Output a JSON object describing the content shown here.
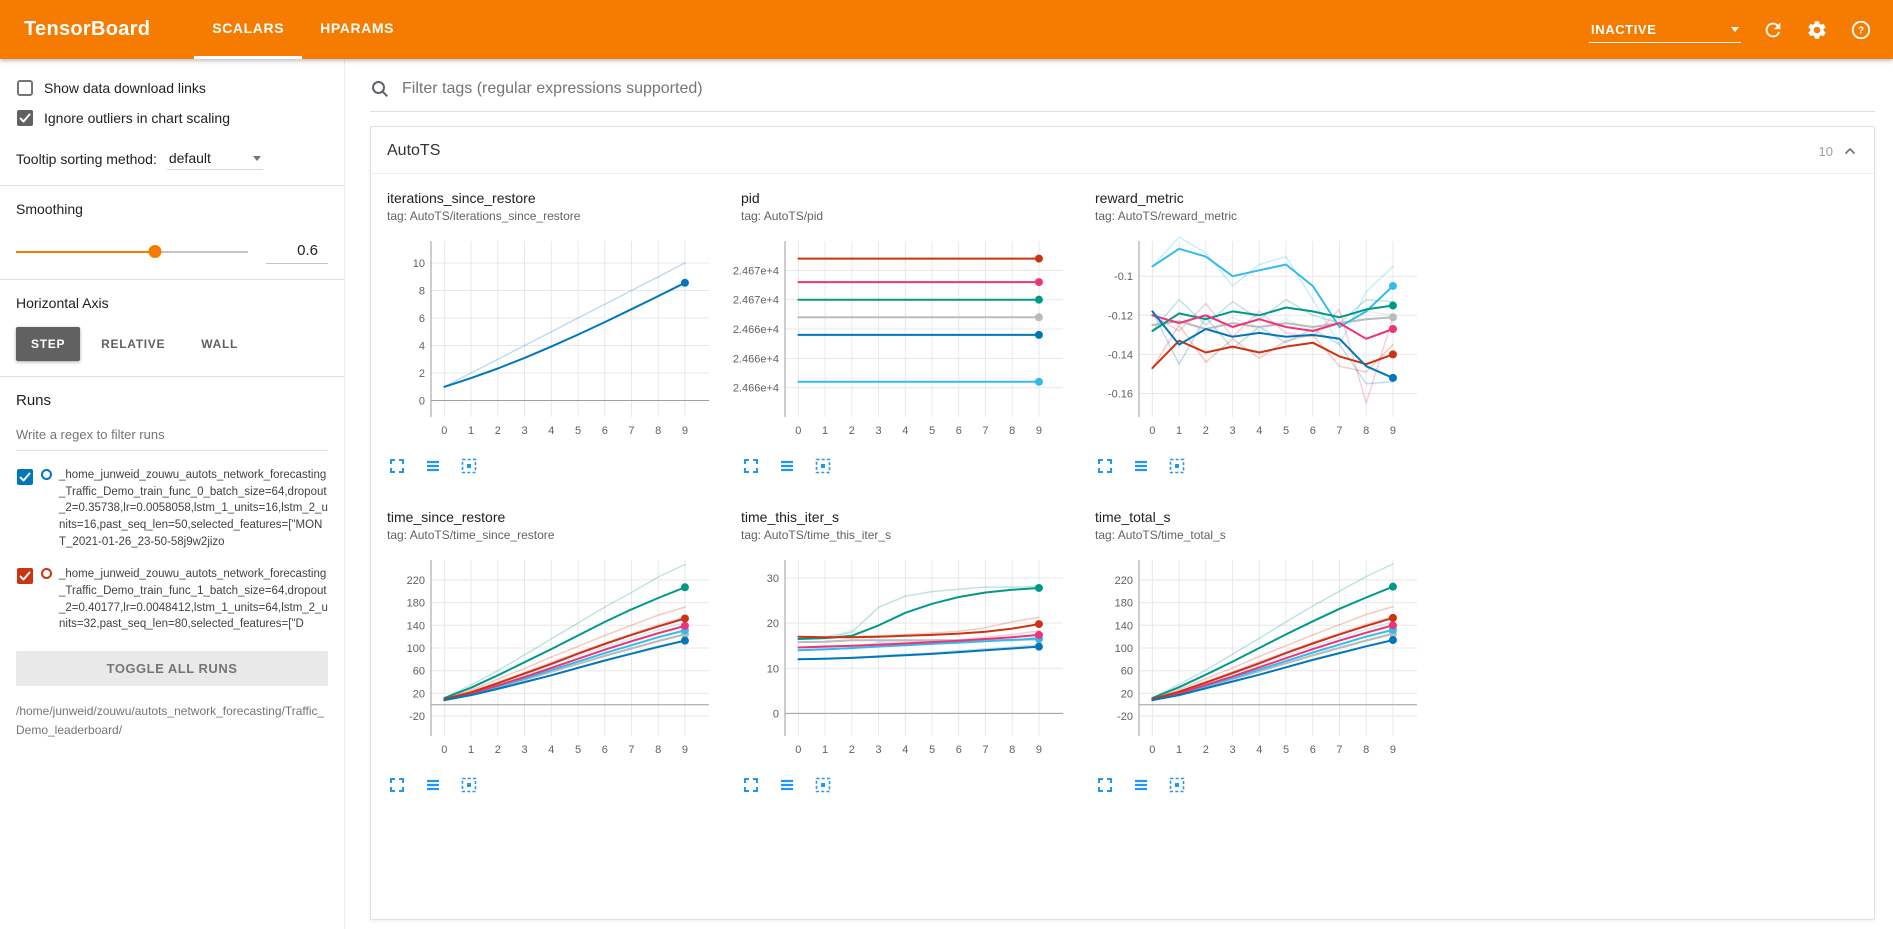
{
  "colors": {
    "accent_orange": "#f57c00",
    "toolbar_icon_blue": "#2196f3",
    "settings_checkbox_gray": "#616161",
    "run_palette": [
      "#0077bb",
      "#33bbee",
      "#009988",
      "#cc3311",
      "#ee3377",
      "#bbbbbb"
    ]
  },
  "header": {
    "brand": "TensorBoard",
    "tabs": [
      {
        "label": "SCALARS",
        "active": true
      },
      {
        "label": "HPARAMS",
        "active": false
      }
    ],
    "status_select": "INACTIVE"
  },
  "sidebar": {
    "checkboxes": [
      {
        "label": "Show data download links",
        "checked": false
      },
      {
        "label": "Ignore outliers in chart scaling",
        "checked": true
      }
    ],
    "tooltip_sort": {
      "label": "Tooltip sorting method:",
      "value": "default"
    },
    "smoothing": {
      "label": "Smoothing",
      "value": "0.6",
      "percent": 60
    },
    "horizontal_axis": {
      "label": "Horizontal Axis",
      "options": [
        "STEP",
        "RELATIVE",
        "WALL"
      ],
      "selected": "STEP"
    },
    "runs": {
      "label": "Runs",
      "filter_placeholder": "Write a regex to filter runs",
      "items": [
        {
          "name": "_home_junweid_zouwu_autots_network_forecasting_Traffic_Demo_train_func_0_batch_size=64,dropout_2=0.35738,lr=0.0058058,lstm_1_units=16,lstm_2_units=16,past_seq_len=50,selected_features=[\"MONT_2021-01-26_23-50-58j9w2jizo",
          "color": "#0077bb",
          "checked": true
        },
        {
          "name": "_home_junweid_zouwu_autots_network_forecasting_Traffic_Demo_train_func_1_batch_size=64,dropout_2=0.40177,lr=0.0048412,lstm_1_units=64,lstm_2_units=32,past_seq_len=80,selected_features=[\"D",
          "color": "#cc3311",
          "checked": true
        }
      ],
      "toggle_all_label": "TOGGLE ALL RUNS",
      "footer_path": "/home/junweid/zouwu/autots_network_forecasting/Traffic_Demo_leaderboard/"
    }
  },
  "main": {
    "filter_placeholder": "Filter tags (regular expressions supported)",
    "card": {
      "title": "AutoTS",
      "count": "10"
    }
  },
  "chart_data": [
    {
      "type": "line",
      "title": "iterations_since_restore",
      "tag": "tag: AutoTS/iterations_since_restore",
      "x": [
        0,
        1,
        2,
        3,
        4,
        5,
        6,
        7,
        8,
        9
      ],
      "xlim": [
        -0.5,
        9.9
      ],
      "ylim": [
        -1.2,
        11.6
      ],
      "yticks": [
        0,
        2,
        4,
        6,
        8,
        10
      ],
      "grid": true,
      "legend": "none",
      "series": [
        {
          "color": "#0077bb",
          "values": [
            1,
            1.63,
            2.33,
            3.1,
            3.92,
            4.79,
            5.7,
            6.64,
            7.59,
            8.56
          ],
          "raw": [
            1,
            2,
            3,
            4,
            5,
            6,
            7,
            8,
            9,
            10
          ]
        }
      ]
    },
    {
      "type": "line",
      "title": "pid",
      "tag": "tag: AutoTS/pid",
      "x": [
        0,
        1,
        2,
        3,
        4,
        5,
        6,
        7,
        8,
        9
      ],
      "xlim": [
        -0.5,
        9.9
      ],
      "ylim": [
        24658,
        24673
      ],
      "yticks": [
        {
          "v": 24670.5,
          "label": "2.467e+4"
        },
        {
          "v": 24668,
          "label": "2.467e+4"
        },
        {
          "v": 24665.5,
          "label": "2.466e+4"
        },
        {
          "v": 24663,
          "label": "2.466e+4"
        },
        {
          "v": 24660.5,
          "label": "2.466e+4"
        }
      ],
      "grid": true,
      "legend": "none",
      "series": [
        {
          "color": "#33bbee",
          "constant": 24661
        },
        {
          "color": "#0077bb",
          "constant": 24665
        },
        {
          "color": "#bbbbbb",
          "constant": 24666.5
        },
        {
          "color": "#009988",
          "constant": 24668
        },
        {
          "color": "#ee3377",
          "constant": 24669.5
        },
        {
          "color": "#cc3311",
          "constant": 24671.5
        }
      ]
    },
    {
      "type": "line",
      "title": "reward_metric",
      "tag": "tag: AutoTS/reward_metric",
      "x": [
        0,
        1,
        2,
        3,
        4,
        5,
        6,
        7,
        8,
        9
      ],
      "xlim": [
        -0.5,
        9.9
      ],
      "ylim": [
        -0.172,
        -0.082
      ],
      "yticks": [
        -0.1,
        -0.12,
        -0.14,
        -0.16
      ],
      "grid": true,
      "legend": "none",
      "series": [
        {
          "color": "#bbbbbb",
          "values": [
            -0.125,
            -0.123,
            -0.127,
            -0.124,
            -0.126,
            -0.124,
            -0.126,
            -0.124,
            -0.122,
            -0.121
          ],
          "raw": [
            -0.125,
            -0.12,
            -0.13,
            -0.121,
            -0.128,
            -0.122,
            -0.128,
            -0.121,
            -0.118,
            -0.12
          ]
        },
        {
          "color": "#33bbee",
          "values": [
            -0.095,
            -0.086,
            -0.09,
            -0.1,
            -0.097,
            -0.094,
            -0.105,
            -0.126,
            -0.118,
            -0.105
          ],
          "raw": [
            -0.095,
            -0.08,
            -0.088,
            -0.105,
            -0.094,
            -0.09,
            -0.112,
            -0.135,
            -0.108,
            -0.095
          ]
        },
        {
          "color": "#009988",
          "values": [
            -0.128,
            -0.119,
            -0.122,
            -0.118,
            -0.12,
            -0.116,
            -0.118,
            -0.121,
            -0.117,
            -0.115
          ],
          "raw": [
            -0.128,
            -0.112,
            -0.125,
            -0.113,
            -0.122,
            -0.112,
            -0.12,
            -0.124,
            -0.112,
            -0.113
          ]
        },
        {
          "color": "#ee3377",
          "values": [
            -0.12,
            -0.124,
            -0.12,
            -0.126,
            -0.122,
            -0.126,
            -0.128,
            -0.124,
            -0.132,
            -0.127
          ],
          "raw": [
            -0.12,
            -0.128,
            -0.114,
            -0.131,
            -0.118,
            -0.129,
            -0.131,
            -0.117,
            -0.165,
            -0.121
          ]
        },
        {
          "color": "#cc3311",
          "values": [
            -0.147,
            -0.133,
            -0.139,
            -0.136,
            -0.139,
            -0.136,
            -0.134,
            -0.141,
            -0.145,
            -0.14
          ],
          "raw": [
            -0.147,
            -0.125,
            -0.144,
            -0.132,
            -0.142,
            -0.133,
            -0.13,
            -0.146,
            -0.149,
            -0.135
          ]
        },
        {
          "color": "#0077bb",
          "values": [
            -0.118,
            -0.135,
            -0.127,
            -0.131,
            -0.129,
            -0.131,
            -0.13,
            -0.132,
            -0.146,
            -0.152
          ],
          "raw": [
            -0.118,
            -0.145,
            -0.121,
            -0.137,
            -0.126,
            -0.134,
            -0.127,
            -0.135,
            -0.155,
            -0.154
          ]
        }
      ]
    },
    {
      "type": "line",
      "title": "time_since_restore",
      "tag": "tag: AutoTS/time_since_restore",
      "x": [
        0,
        1,
        2,
        3,
        4,
        5,
        6,
        7,
        8,
        9
      ],
      "xlim": [
        -0.5,
        9.9
      ],
      "ylim": [
        -55,
        255
      ],
      "yticks": [
        -20,
        20,
        60,
        100,
        140,
        180,
        220
      ],
      "grid": true,
      "legend": "none",
      "series": [
        {
          "color": "#bbbbbb",
          "values": [
            8,
            18,
            31,
            44,
            58,
            72,
            86,
            99,
            112,
            124
          ],
          "raw": [
            8,
            21,
            35,
            50,
            66,
            81,
            96,
            110,
            124,
            137
          ]
        },
        {
          "color": "#33bbee",
          "values": [
            9,
            19,
            32,
            46,
            61,
            76,
            91,
            105,
            119,
            131
          ],
          "raw": [
            9,
            22,
            37,
            53,
            70,
            86,
            102,
            117,
            132,
            145
          ]
        },
        {
          "color": "#009988",
          "values": [
            12,
            30,
            52,
            75,
            98,
            122,
            146,
            168,
            188,
            207
          ],
          "raw": [
            12,
            35,
            60,
            88,
            116,
            144,
            172,
            198,
            225,
            247
          ]
        },
        {
          "color": "#ee3377",
          "values": [
            9,
            20,
            34,
            49,
            65,
            81,
            97,
            112,
            126,
            139
          ],
          "raw": [
            9,
            24,
            40,
            57,
            75,
            92,
            109,
            125,
            141,
            155
          ]
        },
        {
          "color": "#cc3311",
          "values": [
            10,
            22,
            38,
            55,
            72,
            90,
            107,
            123,
            138,
            152
          ],
          "raw": [
            10,
            26,
            45,
            64,
            84,
            103,
            122,
            140,
            158,
            172
          ]
        },
        {
          "color": "#0077bb",
          "values": [
            8,
            17,
            28,
            40,
            52,
            65,
            78,
            90,
            102,
            113
          ],
          "raw": [
            8,
            20,
            32,
            45,
            59,
            73,
            87,
            100,
            113,
            125
          ]
        }
      ]
    },
    {
      "type": "line",
      "title": "time_this_iter_s",
      "tag": "tag: AutoTS/time_this_iter_s",
      "x": [
        0,
        1,
        2,
        3,
        4,
        5,
        6,
        7,
        8,
        9
      ],
      "xlim": [
        -0.5,
        9.9
      ],
      "ylim": [
        -5,
        34
      ],
      "yticks": [
        0,
        10,
        20,
        30
      ],
      "grid": true,
      "legend": "none",
      "series": [
        {
          "color": "#bbbbbb",
          "values": [
            15.8,
            15.9,
            16.2,
            16.2,
            16.2,
            16.2,
            16.2,
            16.2,
            16.3,
            16.4
          ],
          "raw": [
            15.8,
            15.9,
            18.5,
            15.9,
            16,
            16.2,
            16.1,
            16.3,
            16.4,
            16.5
          ]
        },
        {
          "color": "#33bbee",
          "values": [
            14,
            14.2,
            14.5,
            14.8,
            15.1,
            15.4,
            15.7,
            16,
            16.3,
            16.6
          ],
          "raw": [
            14,
            14.6,
            14.2,
            15.8,
            15,
            15.4,
            15.6,
            16.6,
            16,
            17
          ]
        },
        {
          "color": "#009988",
          "values": [
            16.5,
            16.7,
            17.2,
            19.5,
            22.3,
            24.3,
            25.8,
            26.8,
            27.4,
            27.8
          ],
          "raw": [
            16.5,
            17,
            18,
            23.5,
            26,
            27,
            27.5,
            28,
            28,
            28.2
          ]
        },
        {
          "color": "#ee3377",
          "values": [
            14.6,
            14.8,
            15,
            15.2,
            15.5,
            15.8,
            16.1,
            16.5,
            16.9,
            17.4
          ],
          "raw": [
            14.6,
            15,
            14.8,
            15.4,
            15.7,
            16,
            16.3,
            16.9,
            17.5,
            18.3
          ]
        },
        {
          "color": "#cc3311",
          "values": [
            17,
            16.9,
            16.9,
            17,
            17.2,
            17.4,
            17.7,
            18.1,
            18.8,
            19.8
          ],
          "raw": [
            17,
            16.8,
            17,
            17.2,
            17.5,
            17.8,
            18.2,
            19,
            20.3,
            21.3
          ]
        },
        {
          "color": "#0077bb",
          "values": [
            12,
            12.1,
            12.3,
            12.6,
            12.9,
            13.2,
            13.6,
            14,
            14.4,
            14.8
          ],
          "raw": [
            12,
            12.2,
            12.4,
            12.8,
            13.1,
            13.4,
            13.9,
            14.3,
            14.7,
            15.2
          ]
        }
      ]
    },
    {
      "type": "line",
      "title": "time_total_s",
      "tag": "tag: AutoTS/time_total_s",
      "x": [
        0,
        1,
        2,
        3,
        4,
        5,
        6,
        7,
        8,
        9
      ],
      "xlim": [
        -0.5,
        9.9
      ],
      "ylim": [
        -55,
        255
      ],
      "yticks": [
        -20,
        20,
        60,
        100,
        140,
        180,
        220
      ],
      "grid": true,
      "legend": "none",
      "series": [
        {
          "color": "#bbbbbb",
          "values": [
            8,
            19,
            32,
            45,
            59,
            73,
            87,
            100,
            113,
            125
          ],
          "raw": [
            8,
            22,
            36,
            51,
            67,
            82,
            97,
            111,
            125,
            138
          ]
        },
        {
          "color": "#33bbee",
          "values": [
            9,
            19,
            33,
            47,
            62,
            77,
            92,
            106,
            120,
            132
          ],
          "raw": [
            9,
            23,
            38,
            54,
            71,
            87,
            103,
            118,
            133,
            146
          ]
        },
        {
          "color": "#009988",
          "values": [
            12,
            31,
            53,
            76,
            100,
            124,
            147,
            169,
            189,
            208
          ],
          "raw": [
            12,
            36,
            61,
            89,
            117,
            146,
            174,
            200,
            226,
            248
          ]
        },
        {
          "color": "#ee3377",
          "values": [
            9,
            20,
            35,
            50,
            66,
            82,
            98,
            113,
            127,
            140
          ],
          "raw": [
            9,
            24,
            41,
            58,
            76,
            93,
            110,
            126,
            142,
            156
          ]
        },
        {
          "color": "#cc3311",
          "values": [
            10,
            23,
            39,
            56,
            73,
            91,
            108,
            124,
            139,
            153
          ],
          "raw": [
            10,
            27,
            46,
            65,
            85,
            104,
            123,
            141,
            159,
            173
          ]
        },
        {
          "color": "#0077bb",
          "values": [
            8,
            17,
            29,
            41,
            53,
            66,
            79,
            91,
            103,
            114
          ],
          "raw": [
            8,
            20,
            33,
            46,
            60,
            74,
            88,
            101,
            114,
            126
          ]
        }
      ]
    }
  ]
}
